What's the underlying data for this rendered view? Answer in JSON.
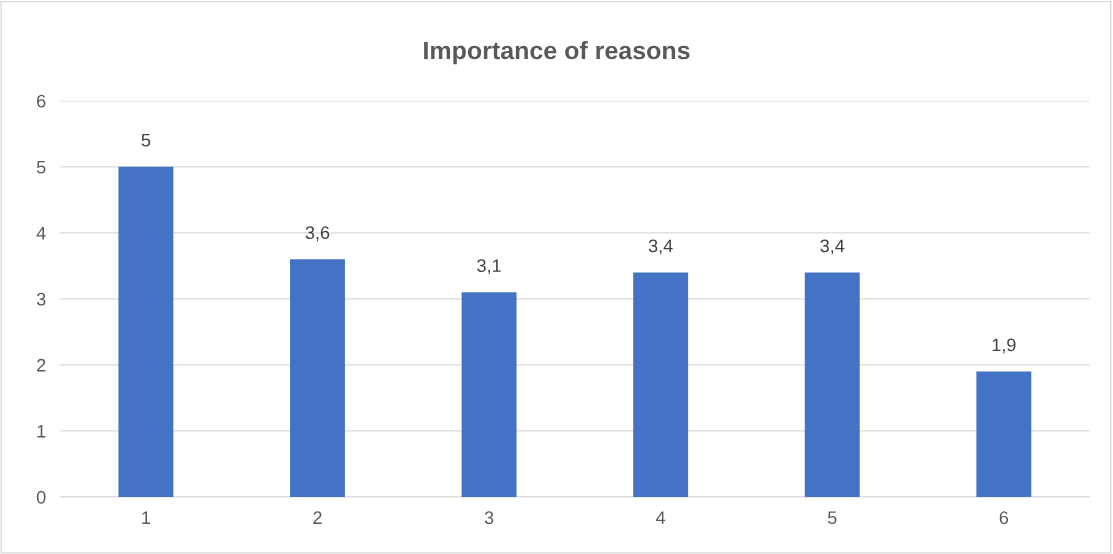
{
  "chart_data": {
    "type": "bar",
    "title": "Importance of reasons",
    "categories": [
      "1",
      "2",
      "3",
      "4",
      "5",
      "6"
    ],
    "values": [
      5,
      3.6,
      3.1,
      3.4,
      3.4,
      1.9
    ],
    "value_labels": [
      "5",
      "3,6",
      "3,1",
      "3,4",
      "3,4",
      "1,9"
    ],
    "color": "#4472c4",
    "ylim": [
      0,
      6
    ],
    "yticks": [
      0,
      1,
      2,
      3,
      4,
      5,
      6
    ],
    "grid": "y",
    "legend": false
  }
}
